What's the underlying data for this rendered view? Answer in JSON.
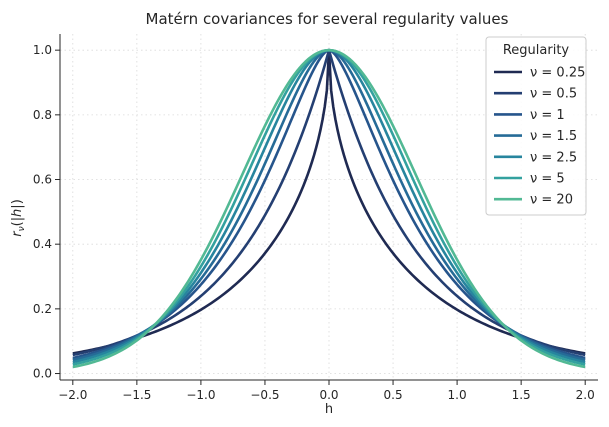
{
  "chart_data": {
    "type": "line",
    "title": "Matérn covariances for several regularity values",
    "xlabel": "h",
    "ylabel": "r_ν(|h|)",
    "xlim": [
      -2.1,
      2.1
    ],
    "ylim": [
      -0.02,
      1.05
    ],
    "xticks": [
      -2.0,
      -1.5,
      -1.0,
      -0.5,
      0.0,
      0.5,
      1.0,
      1.5,
      2.0
    ],
    "xtick_labels": [
      "−2.0",
      "−1.5",
      "−1.0",
      "−0.5",
      "0.0",
      "0.5",
      "1.0",
      "1.5",
      "2.0"
    ],
    "yticks": [
      0.0,
      0.2,
      0.4,
      0.6,
      0.8,
      1.0
    ],
    "ytick_labels": [
      "0.0",
      "0.2",
      "0.4",
      "0.6",
      "0.8",
      "1.0"
    ],
    "grid": true,
    "legend": {
      "title": "Regularity",
      "position": "top-right"
    },
    "x_range": [
      -2.0,
      2.0
    ],
    "series": [
      {
        "name": "ν = 0.25",
        "nu": 0.25,
        "color": "#1f2a52"
      },
      {
        "name": "ν = 0.5",
        "nu": 0.5,
        "color": "#243f72"
      },
      {
        "name": "ν = 1",
        "nu": 1,
        "color": "#26558c"
      },
      {
        "name": "ν = 1.5",
        "nu": 1.5,
        "color": "#266b97"
      },
      {
        "name": "ν = 2.5",
        "nu": 2.5,
        "color": "#27859e"
      },
      {
        "name": "ν = 5",
        "nu": 5,
        "color": "#33a19f"
      },
      {
        "name": "ν = 20",
        "nu": 20,
        "color": "#52b994"
      }
    ],
    "sample_values": {
      "h": [
        0.0,
        0.5,
        1.0,
        1.5,
        2.0
      ],
      "nu_0.25": [
        1.0,
        0.37,
        0.21,
        0.12,
        0.065
      ],
      "nu_0.5": [
        1.0,
        0.55,
        0.29,
        0.14,
        0.06
      ],
      "nu_20": [
        1.0,
        0.74,
        0.34,
        0.105,
        0.025
      ]
    }
  }
}
